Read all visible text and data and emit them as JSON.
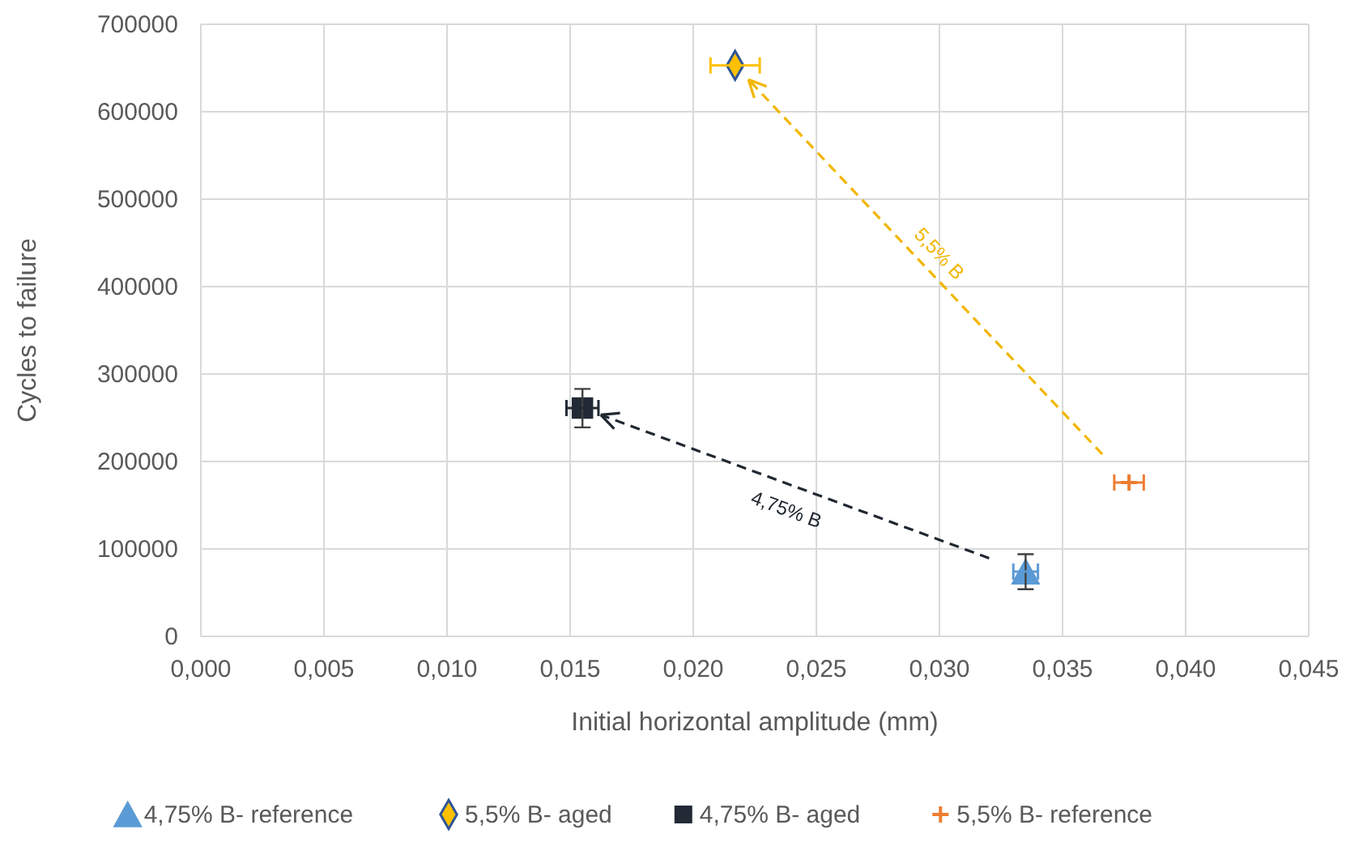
{
  "chart_data": {
    "type": "scatter",
    "xlabel": "Initial horizontal amplitude  (mm)",
    "ylabel": "Cycles to failure",
    "xlim": [
      0,
      0.045
    ],
    "xticks": [
      {
        "value": 0,
        "label": "0,000"
      },
      {
        "value": 0.005,
        "label": "0,005"
      },
      {
        "value": 0.01,
        "label": "0,010"
      },
      {
        "value": 0.015,
        "label": "0,015"
      },
      {
        "value": 0.02,
        "label": "0,020"
      },
      {
        "value": 0.025,
        "label": "0,025"
      },
      {
        "value": 0.03,
        "label": "0,030"
      },
      {
        "value": 0.035,
        "label": "0,035"
      },
      {
        "value": 0.04,
        "label": "0,040"
      },
      {
        "value": 0.045,
        "label": "0,045"
      }
    ],
    "ylim": [
      0,
      700000
    ],
    "yticks": [
      0,
      100000,
      200000,
      300000,
      400000,
      500000,
      600000,
      700000
    ],
    "grid": true,
    "legend": "bottom",
    "series": [
      {
        "name": "4,75% B- reference",
        "color": "#5b9bd5",
        "marker": "triangle",
        "x": [
          0.0335
        ],
        "values": [
          74000
        ],
        "errors": [
          20000
        ],
        "xerrors": [
          0.0005
        ]
      },
      {
        "name": "5,5% B- aged",
        "color": "#ffc000",
        "marker": "diamond",
        "x": [
          0.0217
        ],
        "values": [
          653000
        ],
        "errors": [
          null
        ],
        "xerrors": [
          0.001
        ]
      },
      {
        "name": "4,75% B- aged",
        "color": "#222a35",
        "marker": "square",
        "x": [
          0.0155
        ],
        "values": [
          261000
        ],
        "errors": [
          22000
        ],
        "xerrors": [
          0.00065
        ]
      },
      {
        "name": "5,5% B- reference",
        "color": "#ed7d31",
        "marker": "cross",
        "x": [
          0.0377
        ],
        "values": [
          176000
        ],
        "errors": [
          null
        ],
        "xerrors": [
          0.0006
        ]
      }
    ],
    "annotations": [
      "5,5% B",
      "4,75% B"
    ]
  }
}
